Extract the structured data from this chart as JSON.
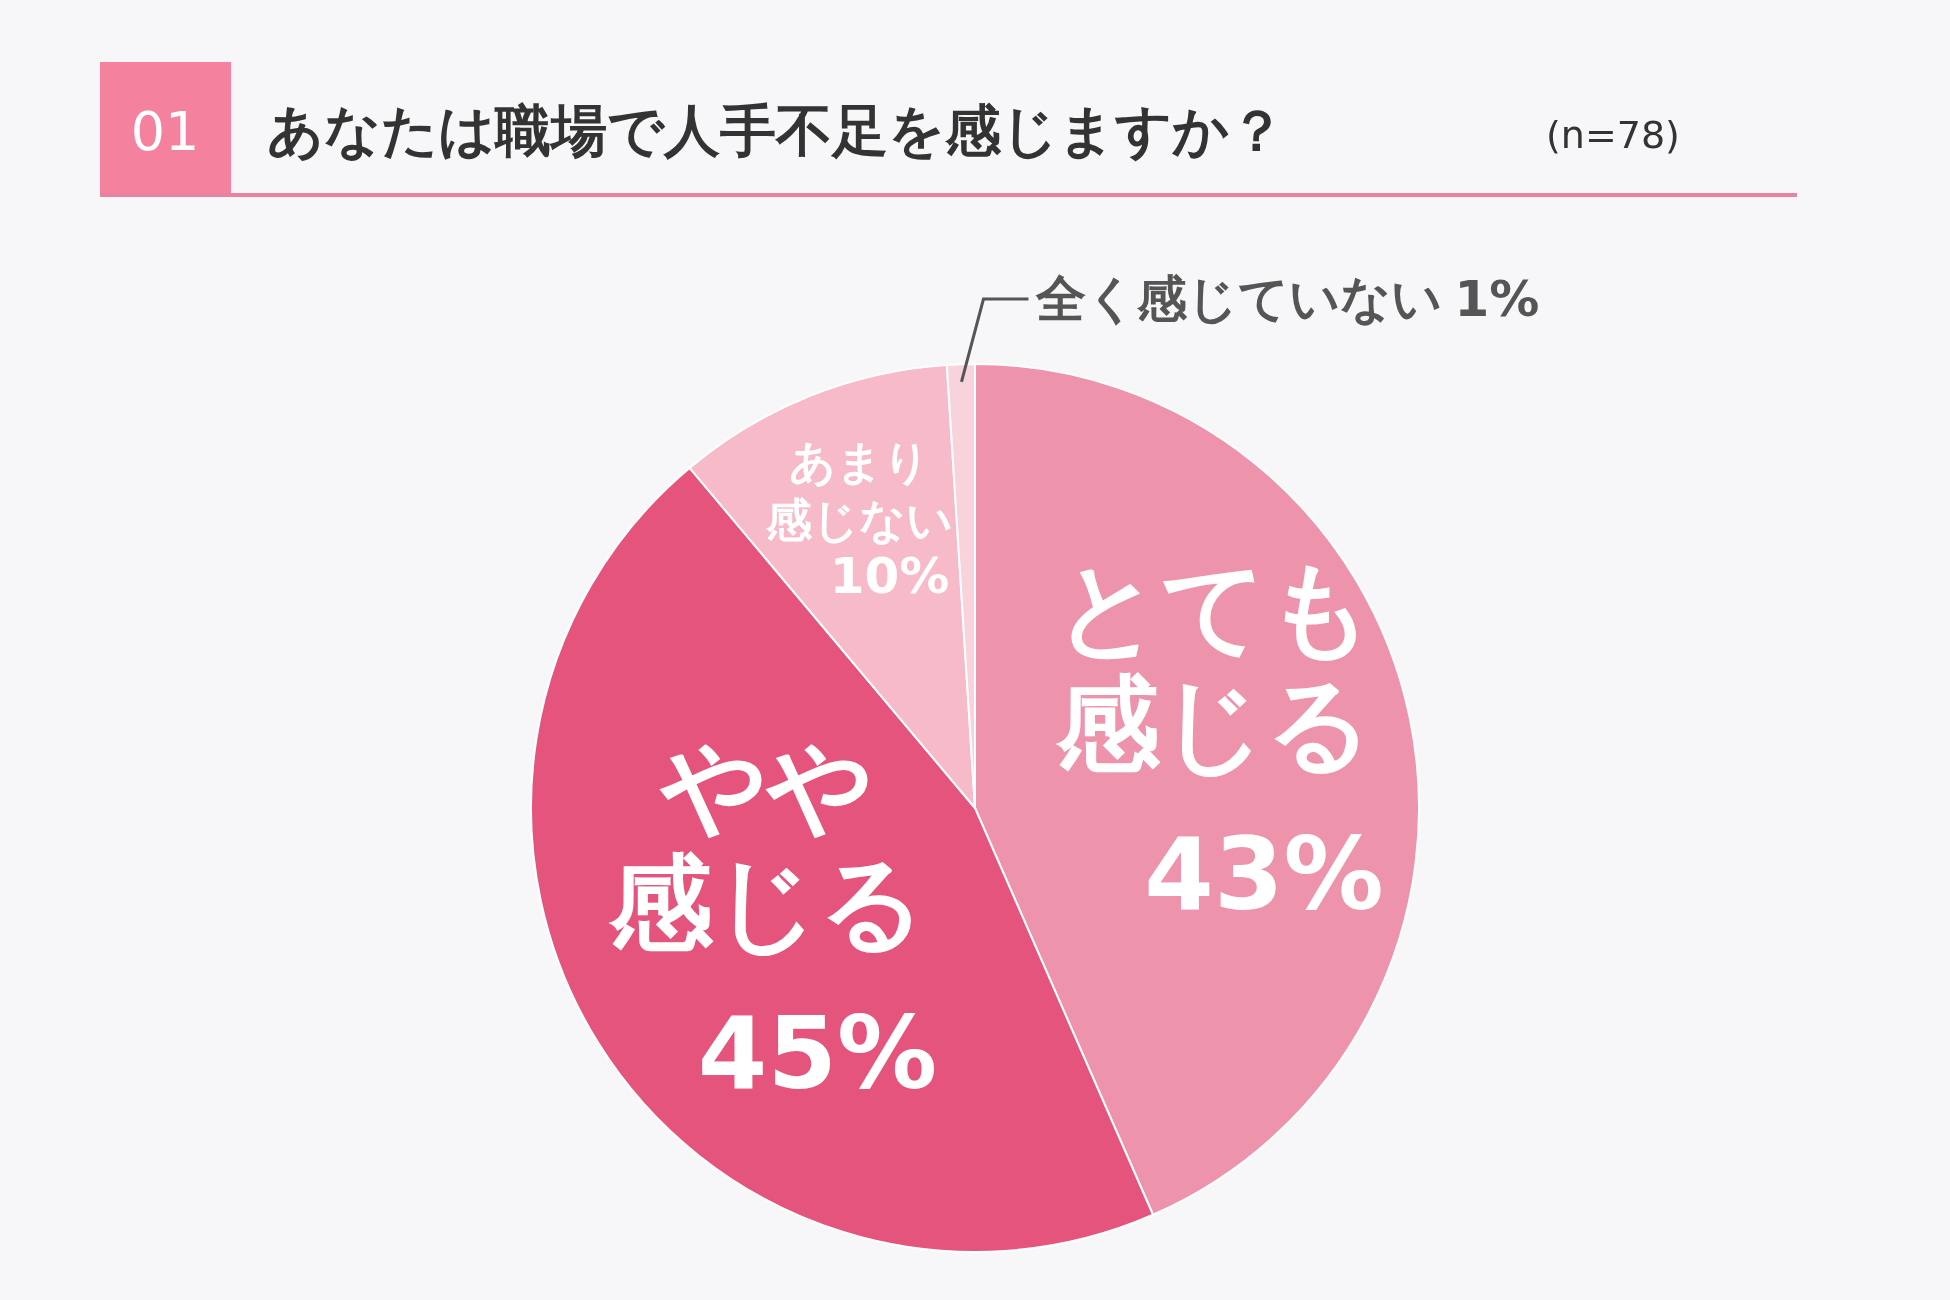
{
  "chart_data": {
    "type": "pie",
    "title": "あなたは職場で人手不足を感じますか？",
    "subtitle": "(n=78)",
    "annotations": [
      "01"
    ],
    "categories": [
      "とても感じる",
      "やや感じる",
      "あまり感じない",
      "全く感じていない"
    ],
    "values": [
      43,
      45,
      10,
      1
    ],
    "value_labels": [
      "43%",
      "45%",
      "10%",
      "1%"
    ],
    "colors": [
      "#ee93ac",
      "#e4547c",
      "#f6bac8",
      "#f9d3dc"
    ]
  }
}
